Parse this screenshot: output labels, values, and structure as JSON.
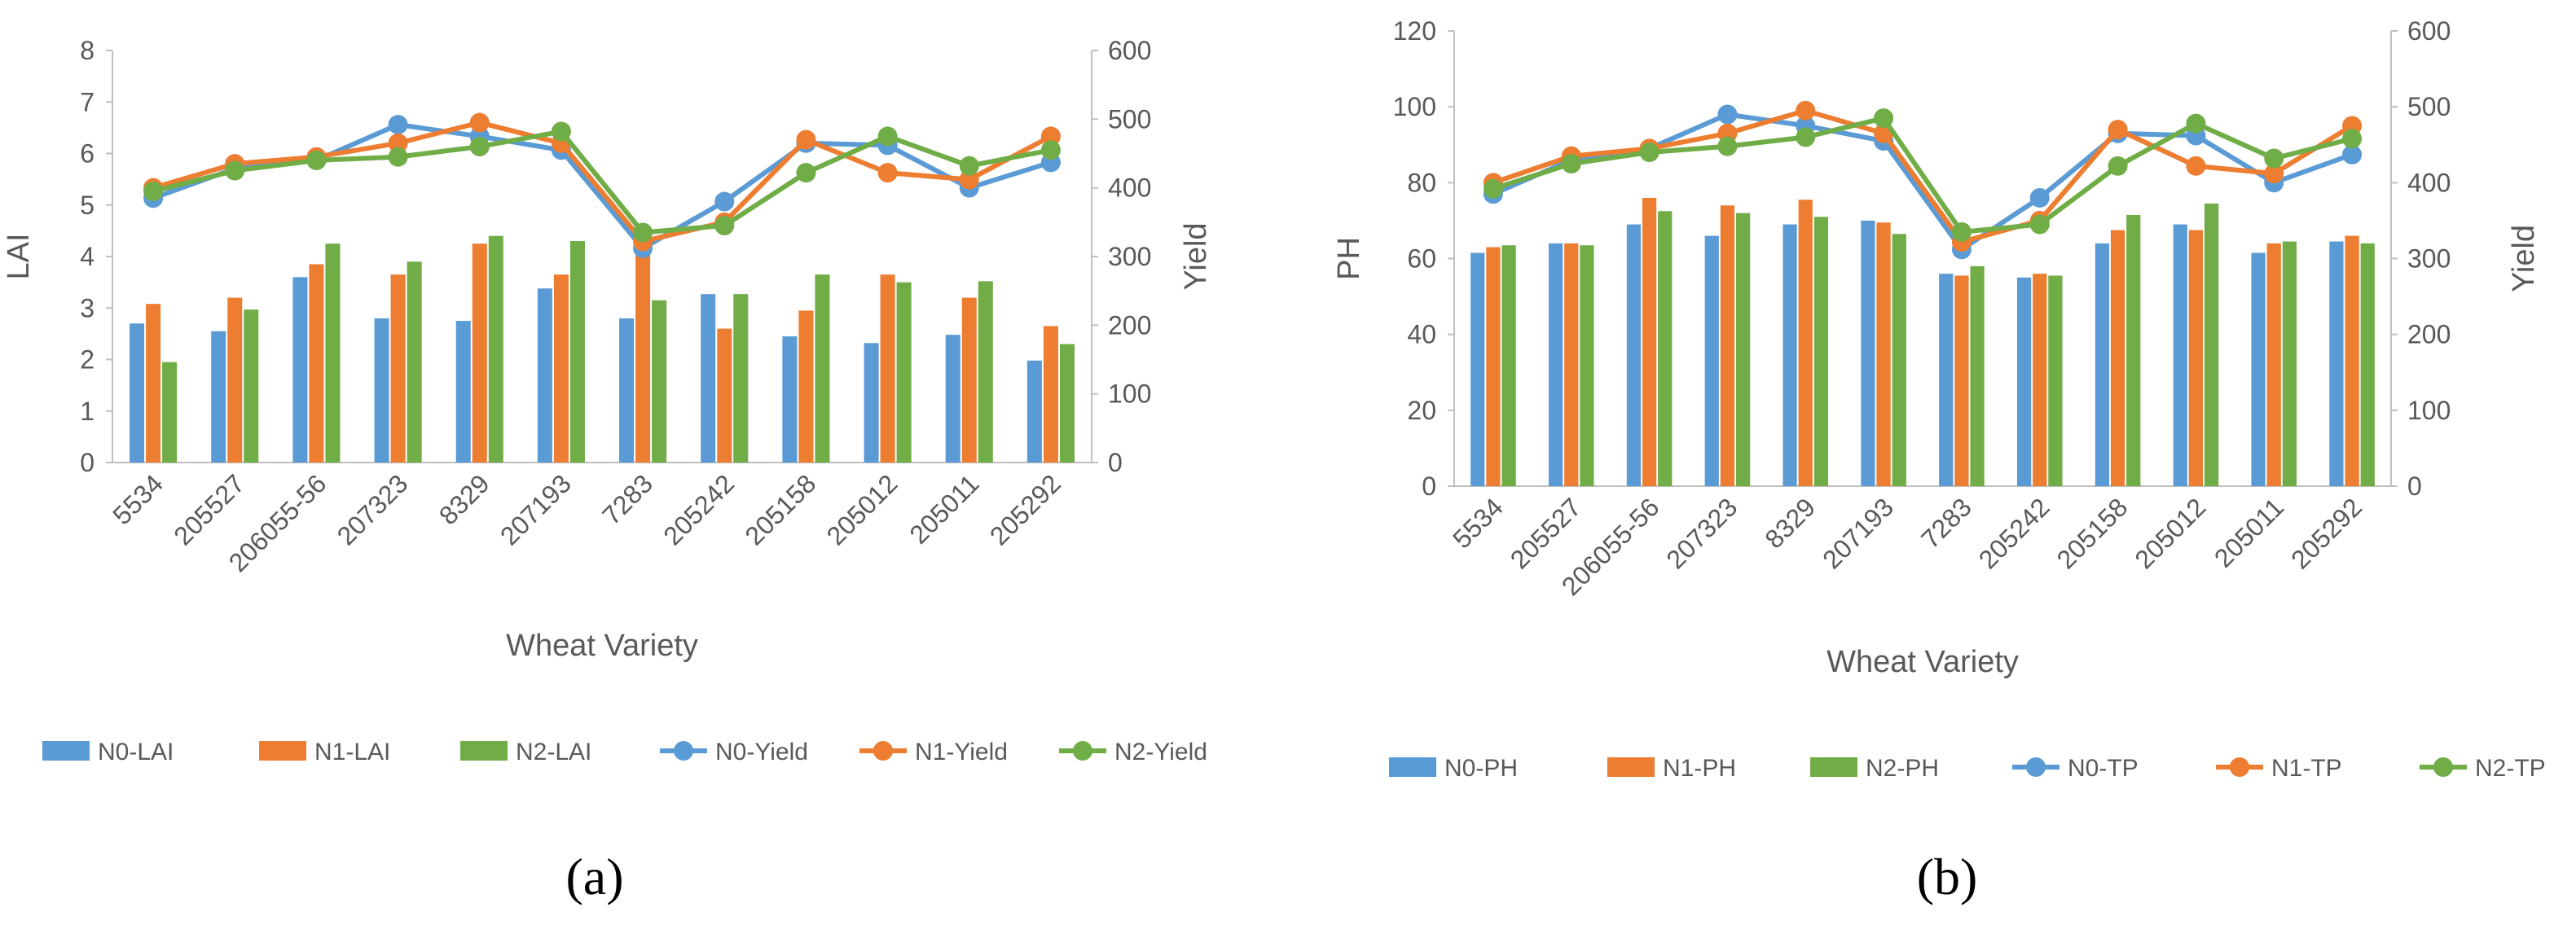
{
  "colors": {
    "N0": "#5b9bd5",
    "N1": "#ed7d31",
    "N2": "#70ad47",
    "axis": "#595959",
    "grid": "#d9d9d9"
  },
  "chart_data": [
    {
      "panel_label": "(a)",
      "type": "bar+line",
      "categories": [
        "5534",
        "205527",
        "206055-56",
        "207323",
        "8329",
        "207193",
        "7283",
        "205242",
        "205158",
        "205012",
        "205011",
        "205292"
      ],
      "xlabel": "Wheat Variety",
      "ylabel": "LAI",
      "y2label": "Yield",
      "ylim": [
        0,
        8
      ],
      "yticks": [
        0,
        1,
        2,
        3,
        4,
        5,
        6,
        7,
        8
      ],
      "y2lim": [
        0,
        600
      ],
      "y2ticks": [
        0,
        100,
        200,
        300,
        400,
        500,
        600
      ],
      "bar_series": [
        {
          "name": "N0-LAI",
          "values": [
            2.7,
            2.55,
            3.6,
            2.8,
            2.75,
            3.38,
            2.8,
            3.27,
            2.45,
            2.32,
            2.48,
            1.98
          ]
        },
        {
          "name": "N1-LAI",
          "values": [
            3.08,
            3.2,
            3.85,
            3.65,
            4.25,
            3.65,
            4.3,
            2.6,
            2.95,
            3.65,
            3.2,
            2.65
          ]
        },
        {
          "name": "N2-LAI",
          "values": [
            1.95,
            2.97,
            4.25,
            3.9,
            4.4,
            4.3,
            3.15,
            3.27,
            3.65,
            3.5,
            3.52,
            2.3
          ]
        }
      ],
      "line_series": [
        {
          "name": "N0-Yield",
          "values": [
            385,
            428,
            440,
            492,
            475,
            455,
            312,
            380,
            465,
            462,
            400,
            437
          ]
        },
        {
          "name": "N1-Yield",
          "values": [
            400,
            435,
            445,
            465,
            495,
            465,
            322,
            350,
            470,
            422,
            412,
            475
          ]
        },
        {
          "name": "N2-Yield",
          "values": [
            395,
            425,
            440,
            445,
            460,
            482,
            335,
            345,
            422,
            475,
            432,
            455
          ]
        }
      ]
    },
    {
      "panel_label": "(b)",
      "type": "bar+line",
      "categories": [
        "5534",
        "205527",
        "206055-56",
        "207323",
        "8329",
        "207193",
        "7283",
        "205242",
        "205158",
        "205012",
        "205011",
        "205292"
      ],
      "xlabel": "Wheat Variety",
      "ylabel": "PH",
      "y2label": "Yield",
      "ylim": [
        0,
        120
      ],
      "yticks": [
        0,
        20,
        40,
        60,
        80,
        100,
        120
      ],
      "y2lim": [
        0,
        600
      ],
      "y2ticks": [
        0,
        100,
        200,
        300,
        400,
        500,
        600
      ],
      "bar_series": [
        {
          "name": "N0-PH",
          "values": [
            61.5,
            64,
            69,
            66,
            69,
            70,
            56,
            55,
            64,
            69,
            61.5,
            64.5
          ]
        },
        {
          "name": "N1-PH",
          "values": [
            63,
            64,
            76,
            74,
            75.5,
            69.5,
            55.5,
            56,
            67.5,
            67.5,
            64,
            66
          ]
        },
        {
          "name": "N2-PH",
          "values": [
            63.5,
            63.5,
            72.5,
            72,
            71,
            66.5,
            58,
            55.5,
            71.5,
            74.5,
            64.5,
            64
          ]
        }
      ],
      "line_series": [
        {
          "name": "N0-TP",
          "values": [
            385,
            430,
            445,
            490,
            475,
            455,
            312,
            380,
            465,
            462,
            400,
            437
          ]
        },
        {
          "name": "N1-TP",
          "values": [
            400,
            435,
            445,
            465,
            495,
            465,
            322,
            350,
            470,
            422,
            412,
            475
          ]
        },
        {
          "name": "N2-TP",
          "values": [
            392,
            425,
            440,
            448,
            460,
            485,
            335,
            345,
            422,
            478,
            432,
            458
          ]
        }
      ]
    }
  ]
}
